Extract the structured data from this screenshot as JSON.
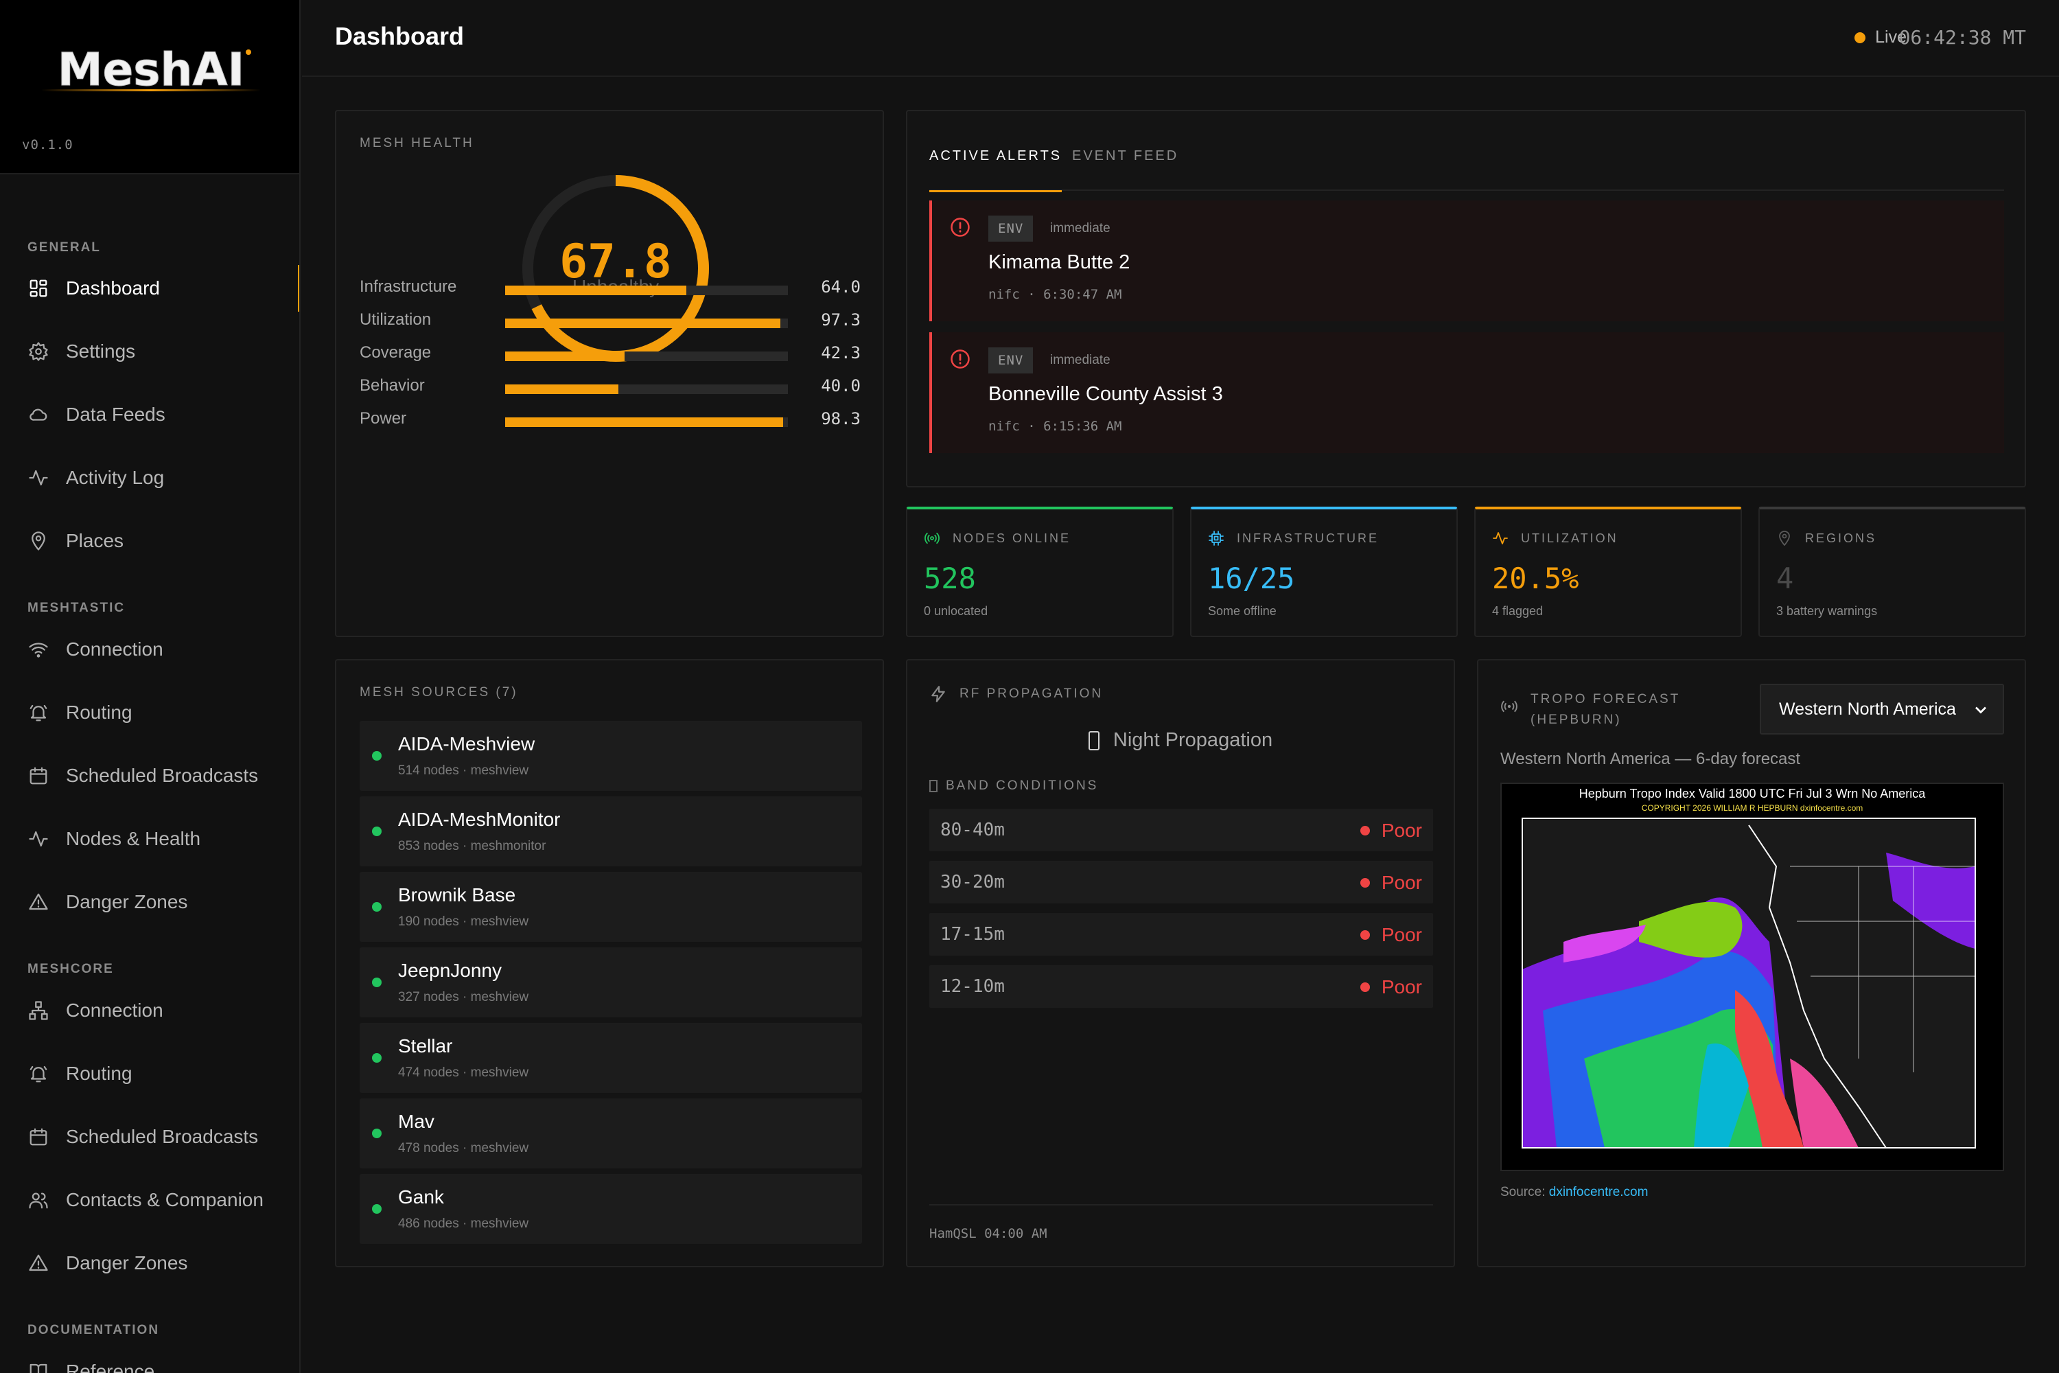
{
  "app": {
    "name": "MeshAI",
    "version": "v0.1.0"
  },
  "header": {
    "title": "Dashboard",
    "live_label": "Live",
    "clock": "06:42:38 MT"
  },
  "sidebar": {
    "sections": [
      {
        "label": "GENERAL",
        "items": [
          {
            "label": "Dashboard",
            "icon": "grid-icon",
            "active": true
          },
          {
            "label": "Settings",
            "icon": "gear-icon"
          },
          {
            "label": "Data Feeds",
            "icon": "cloud-icon"
          },
          {
            "label": "Activity Log",
            "icon": "activity-icon"
          },
          {
            "label": "Places",
            "icon": "map-pin-icon"
          }
        ]
      },
      {
        "label": "MESHTASTIC",
        "items": [
          {
            "label": "Connection",
            "icon": "wifi-icon"
          },
          {
            "label": "Routing",
            "icon": "bell-icon"
          },
          {
            "label": "Scheduled Broadcasts",
            "icon": "calendar-icon"
          },
          {
            "label": "Nodes & Health",
            "icon": "activity-icon"
          },
          {
            "label": "Danger Zones",
            "icon": "warning-icon"
          }
        ]
      },
      {
        "label": "MESHCORE",
        "items": [
          {
            "label": "Connection",
            "icon": "network-icon"
          },
          {
            "label": "Routing",
            "icon": "bell-icon"
          },
          {
            "label": "Scheduled Broadcasts",
            "icon": "calendar-icon"
          },
          {
            "label": "Contacts & Companion",
            "icon": "users-icon"
          },
          {
            "label": "Danger Zones",
            "icon": "warning-icon"
          }
        ]
      },
      {
        "label": "DOCUMENTATION",
        "items": [
          {
            "label": "Reference",
            "icon": "book-icon"
          }
        ]
      }
    ]
  },
  "health": {
    "label": "MESH HEALTH",
    "score": "67.8",
    "score_fraction": 0.678,
    "status": "Unhealthy",
    "metrics": [
      {
        "label": "Infrastructure",
        "value": "64.0",
        "fraction": 0.64
      },
      {
        "label": "Utilization",
        "value": "97.3",
        "fraction": 0.973
      },
      {
        "label": "Coverage",
        "value": "42.3",
        "fraction": 0.423
      },
      {
        "label": "Behavior",
        "value": "40.0",
        "fraction": 0.4
      },
      {
        "label": "Power",
        "value": "98.3",
        "fraction": 0.983
      }
    ]
  },
  "alerts": {
    "tabs": [
      "ACTIVE ALERTS",
      "EVENT FEED"
    ],
    "items": [
      {
        "badge": "ENV",
        "urgency": "immediate",
        "title": "Kimama Butte 2",
        "meta": "nifc · 6:30:47 AM"
      },
      {
        "badge": "ENV",
        "urgency": "immediate",
        "title": "Bonneville County Assist 3",
        "meta": "nifc · 6:15:36 AM"
      }
    ]
  },
  "stats": [
    {
      "label": "NODES ONLINE",
      "value": "528",
      "sub": "0 unlocated",
      "color": "#22c55e",
      "icon": "radio-icon"
    },
    {
      "label": "INFRASTRUCTURE",
      "value": "16/25",
      "sub": "Some offline",
      "color": "#38bdf8",
      "icon": "cpu-icon"
    },
    {
      "label": "UTILIZATION",
      "value": "20.5%",
      "sub": "4 flagged",
      "color": "#f59e0b",
      "icon": "activity-icon"
    },
    {
      "label": "REGIONS",
      "value": "4",
      "sub": "3 battery warnings",
      "color": "#3a3a3a",
      "icon": "map-pin-icon"
    }
  ],
  "sources": {
    "label": "MESH SOURCES (7)",
    "items": [
      {
        "name": "AIDA-Meshview",
        "meta": "514 nodes · meshview"
      },
      {
        "name": "AIDA-MeshMonitor",
        "meta": "853 nodes · meshmonitor"
      },
      {
        "name": "Brownik Base",
        "meta": "190 nodes · meshview"
      },
      {
        "name": "JeepnJonny",
        "meta": "327 nodes · meshview"
      },
      {
        "name": "Stellar",
        "meta": "474 nodes · meshview"
      },
      {
        "name": "Mav",
        "meta": "478 nodes · meshview"
      },
      {
        "name": "Gank",
        "meta": "486 nodes · meshview"
      }
    ]
  },
  "rf": {
    "label": "RF PROPAGATION",
    "mode": "Night Propagation",
    "bands_label": "BAND CONDITIONS",
    "bands": [
      {
        "name": "80-40m",
        "condition": "Poor"
      },
      {
        "name": "30-20m",
        "condition": "Poor"
      },
      {
        "name": "17-15m",
        "condition": "Poor"
      },
      {
        "name": "12-10m",
        "condition": "Poor"
      }
    ],
    "source": "HamQSL  04:00 AM"
  },
  "tropo": {
    "label_line1": "TROPO FORECAST",
    "label_line2": "(HEPBURN)",
    "region": "Western North America",
    "subtitle": "Western North America — 6-day forecast",
    "map_title": "Hepburn Tropo Index Valid 1800 UTC Fri Jul 3 Wrn No America",
    "map_copyright": "COPYRIGHT 2026  WILLIAM R HEPBURN  dxinfocentre.com",
    "source_prefix": "Source: ",
    "source_link": "dxinfocentre.com"
  }
}
